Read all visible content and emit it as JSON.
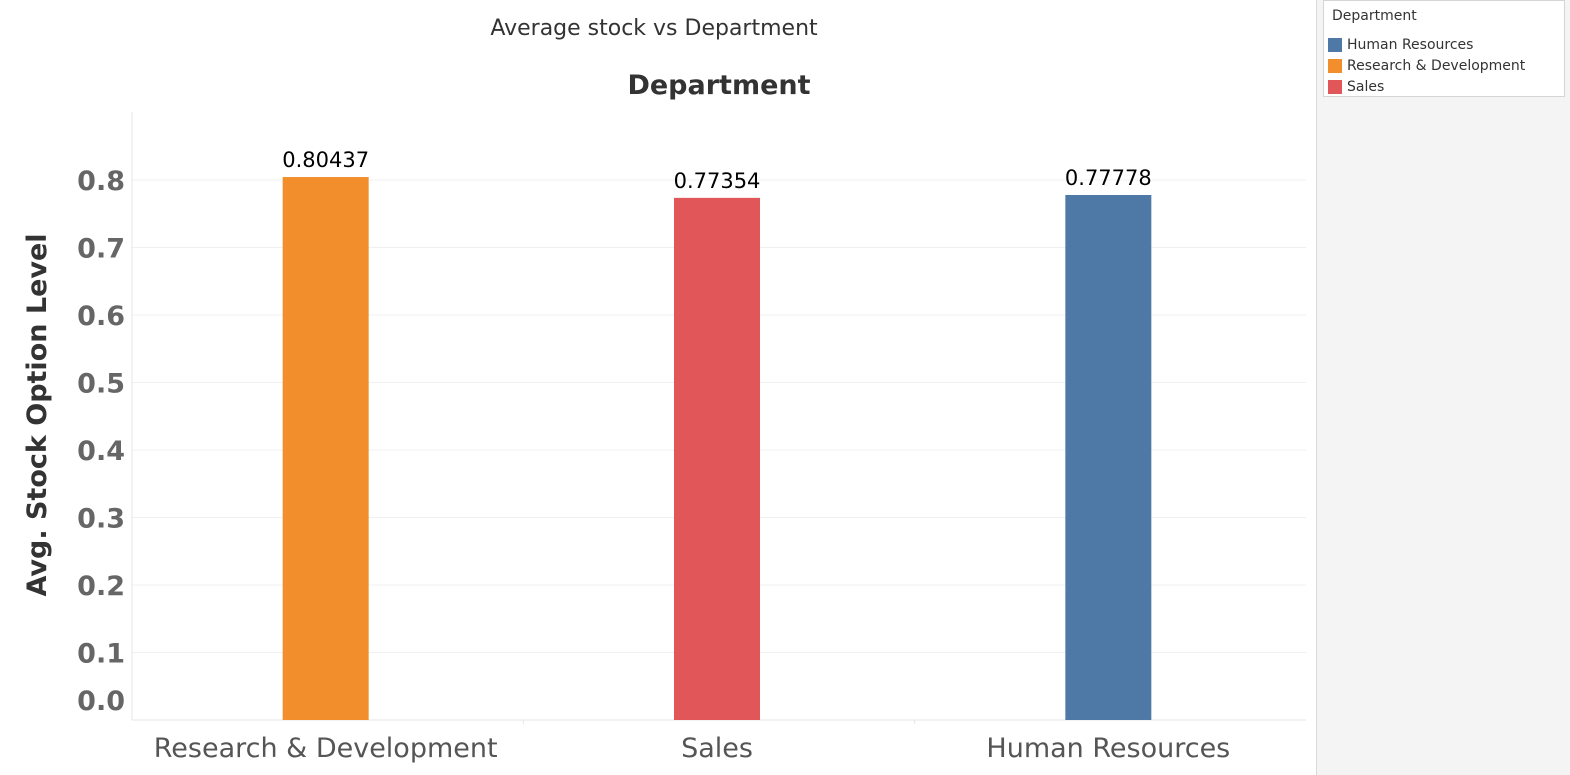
{
  "chart_data": {
    "type": "bar",
    "title": "Average stock vs Department",
    "header_label": "Department",
    "ylabel": "Avg. Stock Option Level",
    "xlabel": "",
    "categories": [
      "Research & Development",
      "Sales",
      "Human Resources"
    ],
    "values": [
      0.80437,
      0.77354,
      0.77778
    ],
    "value_labels": [
      "0.80437",
      "0.77354",
      "0.77778"
    ],
    "colors": [
      "#f28e2b",
      "#e15759",
      "#4e79a7"
    ],
    "ylim": [
      0,
      0.86
    ],
    "yticks": [
      0.0,
      0.1,
      0.2,
      0.3,
      0.4,
      0.5,
      0.6,
      0.7,
      0.8
    ],
    "ytick_labels": [
      "0.0",
      "0.1",
      "0.2",
      "0.3",
      "0.4",
      "0.5",
      "0.6",
      "0.7",
      "0.8"
    ],
    "grid": true
  },
  "legend": {
    "title": "Department",
    "items": [
      {
        "label": "Human Resources",
        "color": "#4e79a7"
      },
      {
        "label": "Research & Development",
        "color": "#f28e2b"
      },
      {
        "label": "Sales",
        "color": "#e15759"
      }
    ]
  }
}
